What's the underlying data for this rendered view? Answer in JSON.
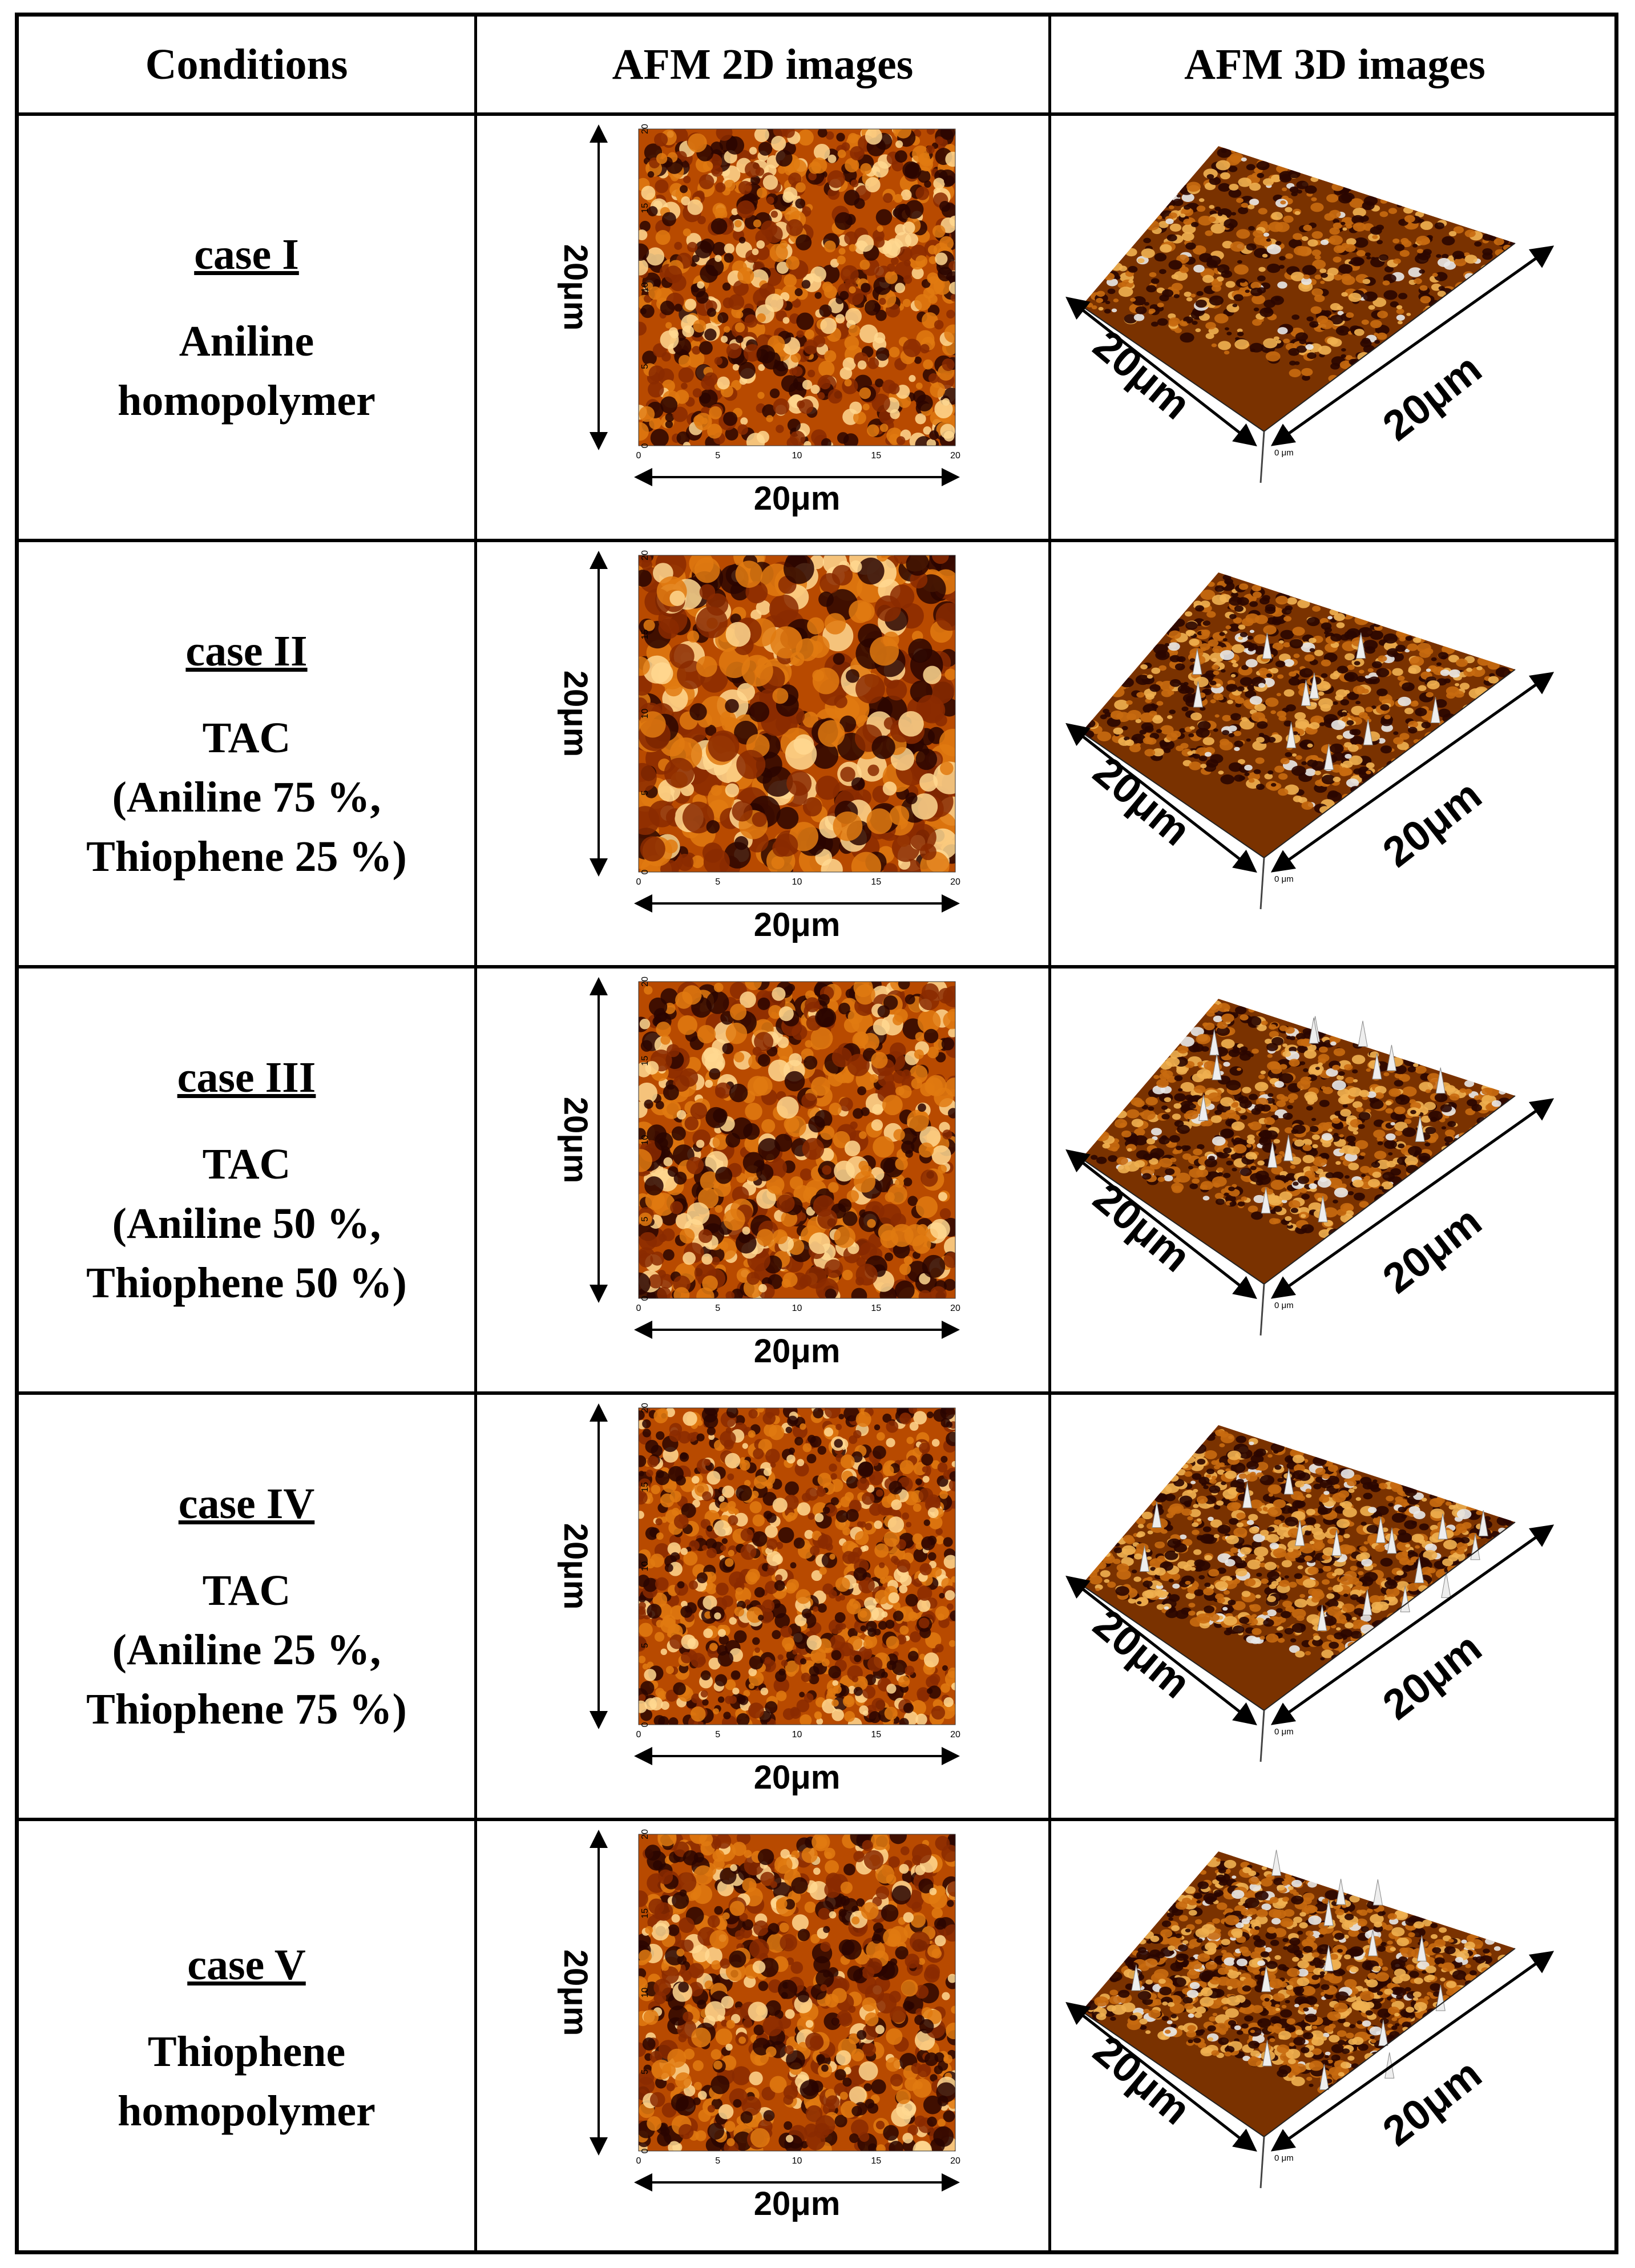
{
  "table": {
    "headers": [
      "Conditions",
      "AFM 2D images",
      "AFM 3D images"
    ],
    "rows": [
      {
        "case": "case I",
        "lines": [
          "Aniline",
          "homopolymer"
        ]
      },
      {
        "case": "case II",
        "lines": [
          "TAC",
          "(Aniline 75 %,",
          "Thiophene 25 %)"
        ]
      },
      {
        "case": "case III",
        "lines": [
          "TAC",
          "(Aniline 50 %,",
          "Thiophene 50 %)"
        ]
      },
      {
        "case": "case IV",
        "lines": [
          "TAC",
          "(Aniline 25 %,",
          "Thiophene 75 %)"
        ]
      },
      {
        "case": "case V",
        "lines": [
          "Thiophene",
          "homopolymer"
        ]
      }
    ]
  },
  "scale_label": "20μm",
  "axis_ticks": [
    "0",
    "5",
    "10",
    "15",
    "20"
  ],
  "corner_label": "0 μm",
  "colors": {
    "dark": "#2a0500",
    "mid": "#b84a00",
    "bright": "#ffd890",
    "line": "#000000"
  }
}
